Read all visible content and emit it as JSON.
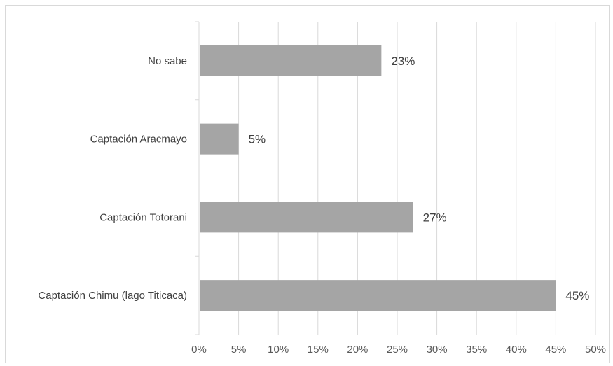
{
  "chart_data": {
    "type": "bar",
    "orientation": "horizontal",
    "categories": [
      "No sabe",
      "Captación Aracmayo",
      "Captación Totorani",
      "Captación Chimu (lago Titicaca)"
    ],
    "values": [
      23,
      5,
      27,
      45
    ],
    "value_labels": [
      "23%",
      "5%",
      "27%",
      "45%"
    ],
    "x_ticks": [
      "0%",
      "5%",
      "10%",
      "15%",
      "20%",
      "25%",
      "30%",
      "35%",
      "40%",
      "45%",
      "50%"
    ],
    "xlim": [
      0,
      50
    ],
    "xtick_step": 5,
    "grid": "vertical",
    "legend": "none",
    "bar_color": "#a5a5a5",
    "grid_color": "#d9d9d9",
    "text_color": "#404040"
  }
}
